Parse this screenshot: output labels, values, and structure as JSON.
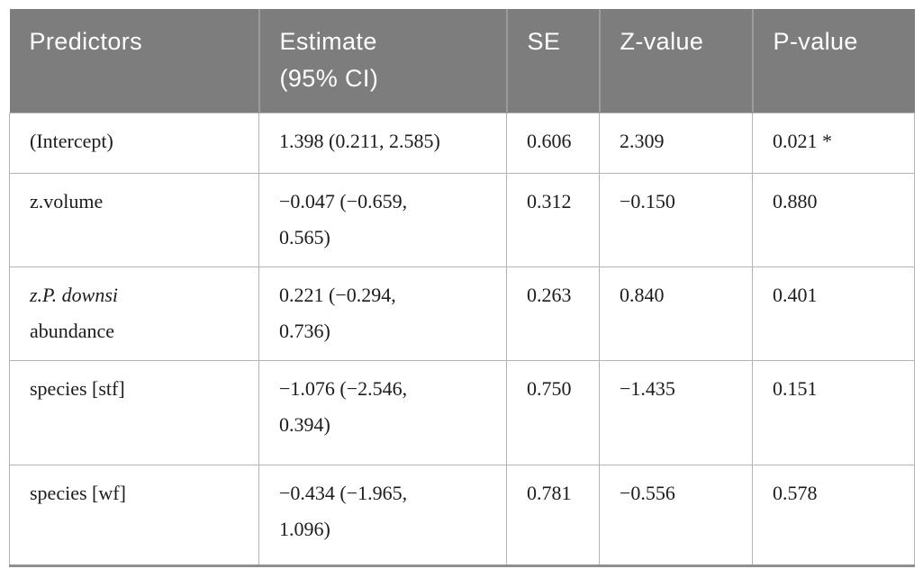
{
  "colors": {
    "page_bg": "#ffffff",
    "header_bg": "#7d7d7d",
    "header_text": "#ffffff",
    "header_divider": "#9b9b9b",
    "body_text": "#1c1c1c",
    "grid_line": "#b3b3b3",
    "table_bottom_border": "#8f8f8f"
  },
  "table": {
    "headers": [
      "Predictors",
      "Estimate\n(95% CI)",
      "SE",
      "Z-value",
      "P-value"
    ],
    "rows": [
      {
        "predictor": "(Intercept)",
        "estimate": "1.398 (0.211, 2.585)",
        "se": "0.606",
        "z_value": "2.309",
        "p_value": "0.021 *"
      },
      {
        "predictor": "z.volume",
        "estimate": "−0.047 (−0.659,\n0.565)",
        "se": "0.312",
        "z_value": "−0.150",
        "p_value": "0.880"
      },
      {
        "predictor_italic": "z.P. downsi",
        "predictor": "\nabundance",
        "estimate": "0.221 (−0.294,\n0.736)",
        "se": "0.263",
        "z_value": "0.840",
        "p_value": "0.401"
      },
      {
        "predictor": "species [stf]",
        "estimate": "−1.076 (−2.546,\n0.394)",
        "se": "0.750",
        "z_value": "−1.435",
        "p_value": "0.151"
      },
      {
        "predictor": "species [wf]",
        "estimate": "−0.434 (−1.965,\n1.096)",
        "se": "0.781",
        "z_value": "−0.556",
        "p_value": "0.578"
      }
    ]
  }
}
